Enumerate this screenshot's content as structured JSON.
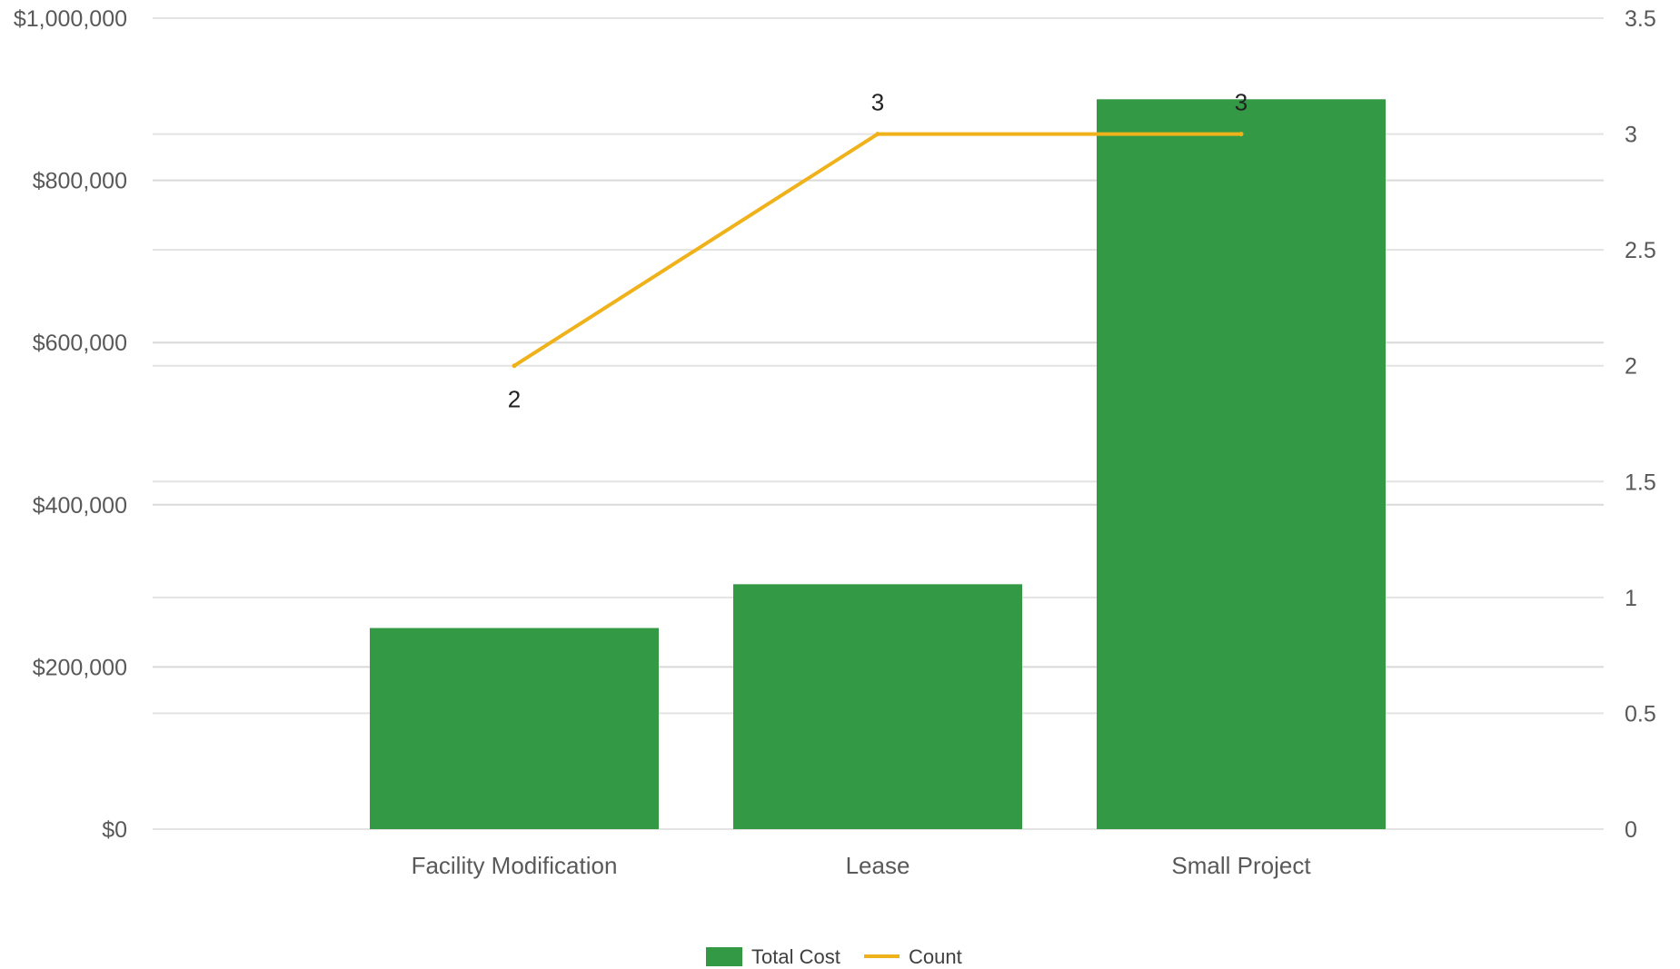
{
  "chart_data": {
    "type": "bar",
    "categories": [
      "Facility Modification",
      "Lease",
      "Small Project"
    ],
    "series": [
      {
        "name": "Total Cost",
        "type": "bar",
        "axis": "left",
        "color": "#339944",
        "values": [
          248000,
          302000,
          900000
        ]
      },
      {
        "name": "Count",
        "type": "line",
        "axis": "right",
        "color": "#f0b21a",
        "values": [
          2,
          3,
          3
        ],
        "data_labels": [
          "2",
          "3",
          "3"
        ]
      }
    ],
    "y_left": {
      "ylim": [
        0,
        1000000
      ],
      "tick_values": [
        0,
        200000,
        400000,
        600000,
        800000,
        1000000
      ],
      "tick_labels": [
        "$0",
        "$200,000",
        "$400,000",
        "$600,000",
        "$800,000",
        "$1,000,000"
      ]
    },
    "y_right": {
      "ylim": [
        0,
        3.5
      ],
      "tick_values": [
        0,
        0.5,
        1,
        1.5,
        2,
        2.5,
        3,
        3.5
      ],
      "tick_labels": [
        "0",
        "0.5",
        "1",
        "1.5",
        "2",
        "2.5",
        "3",
        "3.5"
      ]
    },
    "grid": true,
    "legend_position": "bottom-center"
  }
}
